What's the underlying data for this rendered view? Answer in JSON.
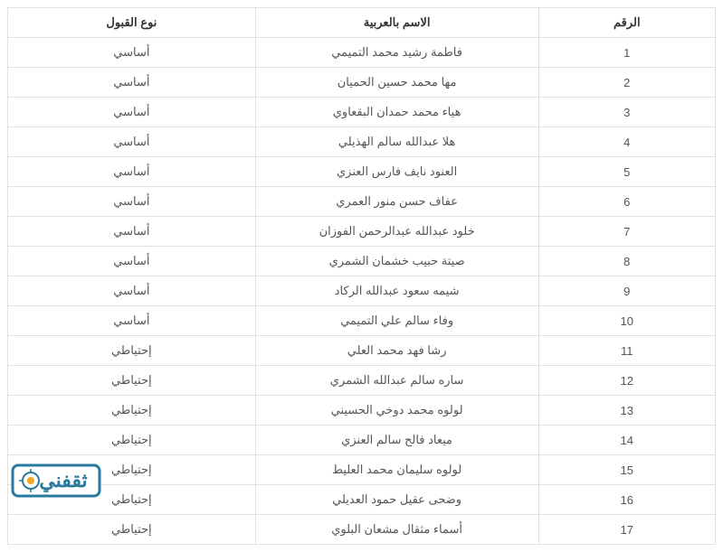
{
  "table": {
    "columns": [
      "الرقم",
      "الاسم بالعربية",
      "نوع القبول"
    ],
    "column_widths": [
      "25%",
      "40%",
      "35%"
    ],
    "header_color": "#333333",
    "cell_color": "#555555",
    "border_color": "#e0e0e0",
    "background_color": "#ffffff",
    "font_size": 13,
    "rows": [
      {
        "num": "1",
        "name": "فاطمة رشيد محمد التميمي",
        "type": "أساسي"
      },
      {
        "num": "2",
        "name": "مها محمد حسين الحميان",
        "type": "أساسي"
      },
      {
        "num": "3",
        "name": "هياء محمد حمدان البقعاوي",
        "type": "أساسي"
      },
      {
        "num": "4",
        "name": "هلا عبدالله سالم الهذيلي",
        "type": "أساسي"
      },
      {
        "num": "5",
        "name": "العنود نايف فارس العنزي",
        "type": "أساسي"
      },
      {
        "num": "6",
        "name": "عفاف حسن منور العمري",
        "type": "أساسي"
      },
      {
        "num": "7",
        "name": "خلود عبدالله عبدالرحمن الفوزان",
        "type": "أساسي"
      },
      {
        "num": "8",
        "name": "صيتة حبيب خشمان الشمري",
        "type": "أساسي"
      },
      {
        "num": "9",
        "name": "شيمه سعود عبدالله الركاد",
        "type": "أساسي"
      },
      {
        "num": "10",
        "name": "وفاء سالم علي التميمي",
        "type": "أساسي"
      },
      {
        "num": "11",
        "name": "رشا فهد محمد العلي",
        "type": "إحتياطي"
      },
      {
        "num": "12",
        "name": "ساره سالم عبدالله الشمري",
        "type": "إحتياطي"
      },
      {
        "num": "13",
        "name": "لولوه محمد دوخي الحسيني",
        "type": "إحتياطي"
      },
      {
        "num": "14",
        "name": "ميعاد فالح سالم العنزي",
        "type": "إحتياطي"
      },
      {
        "num": "15",
        "name": "لولوه سليمان محمد العليط",
        "type": "إحتياطي"
      },
      {
        "num": "16",
        "name": "وضحى عقيل حمود العديلي",
        "type": "إحتياطي"
      },
      {
        "num": "17",
        "name": "أسماء مثقال مشعان البلوي",
        "type": "إحتياطي"
      }
    ]
  },
  "watermark": {
    "text": "ثقفني",
    "primary_color": "#2a7a9e",
    "accent_color": "#f5a623",
    "outline_color": "#ffffff"
  }
}
